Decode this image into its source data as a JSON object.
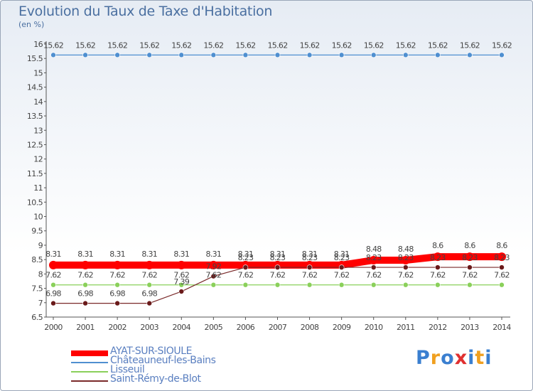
{
  "chart_data": {
    "type": "line",
    "title": "Evolution du Taux de Taxe d'Habitation",
    "subtitle": "(en %)",
    "xlabel": "",
    "ylabel": "(en %)",
    "ylim": [
      6.5,
      16
    ],
    "yticks": [
      "6.5",
      "7",
      "7.5",
      "8",
      "8.5",
      "9",
      "9.5",
      "10",
      "10.5",
      "11",
      "11.5",
      "12",
      "12.5",
      "13",
      "13.5",
      "14",
      "14.5",
      "15",
      "15.5",
      "16"
    ],
    "categories": [
      "2000",
      "2001",
      "2002",
      "2003",
      "2004",
      "2005",
      "2006",
      "2007",
      "2008",
      "2009",
      "2010",
      "2011",
      "2012",
      "2013",
      "2014"
    ],
    "grid": false,
    "series": [
      {
        "name": "AYAT-SUR-SIOULE",
        "color": "#ff0000",
        "values": [
          8.31,
          8.31,
          8.31,
          8.31,
          8.31,
          8.31,
          8.31,
          8.31,
          8.31,
          8.31,
          8.48,
          8.48,
          8.6,
          8.6,
          8.6
        ],
        "labels": [
          "8.31",
          "8.31",
          "8.31",
          "8.31",
          "8.31",
          "8.31",
          "8.31",
          "8.31",
          "8.31",
          "8.31",
          "8.48",
          "8.48",
          "8.6",
          "8.6",
          "8.6"
        ]
      },
      {
        "name": "Châteauneuf-les-Bains",
        "color": "#4f8fd0",
        "values": [
          15.62,
          15.62,
          15.62,
          15.62,
          15.62,
          15.62,
          15.62,
          15.62,
          15.62,
          15.62,
          15.62,
          15.62,
          15.62,
          15.62,
          15.62
        ],
        "labels": [
          "15.62",
          "15.62",
          "15.62",
          "15.62",
          "15.62",
          "15.62",
          "15.62",
          "15.62",
          "15.62",
          "15.62",
          "15.62",
          "15.62",
          "15.62",
          "15.62",
          "15.62"
        ]
      },
      {
        "name": "Lisseuil",
        "color": "#8ad05a",
        "values": [
          7.62,
          7.62,
          7.62,
          7.62,
          7.62,
          7.62,
          7.62,
          7.62,
          7.62,
          7.62,
          7.62,
          7.62,
          7.62,
          7.62,
          7.62
        ],
        "labels": [
          "7.62",
          "7.62",
          "7.62",
          "7.62",
          "7.62",
          "7.62",
          "7.62",
          "7.62",
          "7.62",
          "7.62",
          "7.62",
          "7.62",
          "7.62",
          "7.62",
          "7.62"
        ]
      },
      {
        "name": "Saint-Rémy-de-Blot",
        "color": "#7a2a2a",
        "values": [
          6.98,
          6.98,
          6.98,
          6.98,
          7.39,
          7.92,
          8.23,
          8.23,
          8.23,
          8.23,
          8.23,
          8.23,
          8.23,
          8.23,
          8.23
        ],
        "labels": [
          "6.98",
          "6.98",
          "6.98",
          "6.98",
          "7.39",
          "7.92",
          "8.23",
          "8.23",
          "8.23",
          "8.23",
          "8.23",
          "8.23",
          "8.23",
          "8.23",
          "8.23"
        ]
      }
    ],
    "legend": "bottom-left"
  },
  "logo": {
    "letters": [
      "P",
      "r",
      "o",
      "x",
      "i",
      "t",
      "i"
    ],
    "colors": [
      "#3a7fd0",
      "#f0a020",
      "#3a7fd0",
      "#e03030",
      "#3a7fd0",
      "#f0a020",
      "#3a7fd0"
    ]
  }
}
